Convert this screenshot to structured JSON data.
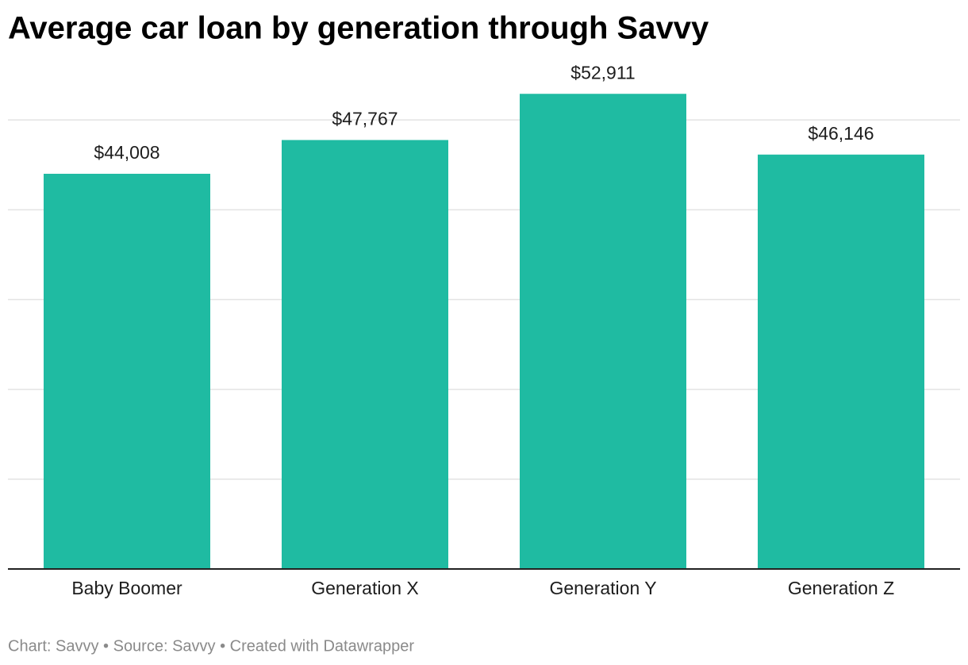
{
  "chart_data": {
    "type": "bar",
    "title": "Average car loan by generation through Savvy",
    "categories": [
      "Baby Boomer",
      "Generation X",
      "Generation Y",
      "Generation Z"
    ],
    "values": [
      44008,
      47767,
      52911,
      46146
    ],
    "value_labels": [
      "$44,008",
      "$47,767",
      "$52,911",
      "$46,146"
    ],
    "color": "#1fbba2",
    "ylim": [
      0,
      55000
    ],
    "yticks": [
      0,
      10000,
      20000,
      30000,
      40000,
      50000
    ],
    "grid": true,
    "note": "Chart: Savvy • Source: Savvy • Created with Datawrapper"
  }
}
